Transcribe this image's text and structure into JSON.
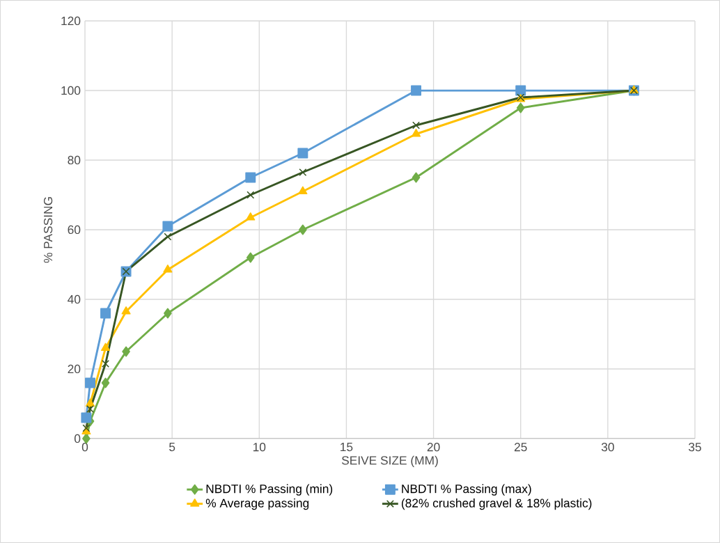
{
  "chart_data": {
    "type": "line",
    "xlabel": "SEIVE SIZE (MM)",
    "ylabel": "% PASSING",
    "x": [
      0.075,
      0.3,
      1.18,
      2.36,
      4.75,
      9.5,
      12.5,
      19,
      25,
      31.5
    ],
    "series": [
      {
        "name": "NBDTI % Passing (min)",
        "color": "#70ad47",
        "marker": "diamond",
        "values": [
          0,
          5,
          16,
          25,
          36,
          52,
          60,
          75,
          95,
          100
        ]
      },
      {
        "name": "NBDTI % Passing (max)",
        "color": "#5b9bd5",
        "marker": "square",
        "values": [
          6,
          16,
          36,
          48,
          61,
          75,
          82,
          100,
          100,
          100
        ]
      },
      {
        "name": "% Average passing",
        "color": "#ffc000",
        "marker": "triangle",
        "values": [
          2,
          10,
          26,
          36.5,
          48.5,
          63.5,
          71,
          87.5,
          97.5,
          100
        ]
      },
      {
        "name": "(82% crushed gravel & 18% plastic)",
        "color": "#375623",
        "marker": "cross",
        "values": [
          3,
          8.5,
          21.5,
          48,
          58,
          70,
          76.5,
          90,
          98,
          100
        ]
      }
    ],
    "xlim": [
      0,
      35
    ],
    "xticks": [
      0,
      5,
      10,
      15,
      20,
      25,
      30,
      35
    ],
    "ylim": [
      0,
      120
    ],
    "yticks": [
      0,
      20,
      40,
      60,
      80,
      100,
      120
    ],
    "grid": true,
    "legend": "bottom",
    "line_style": "solid"
  }
}
